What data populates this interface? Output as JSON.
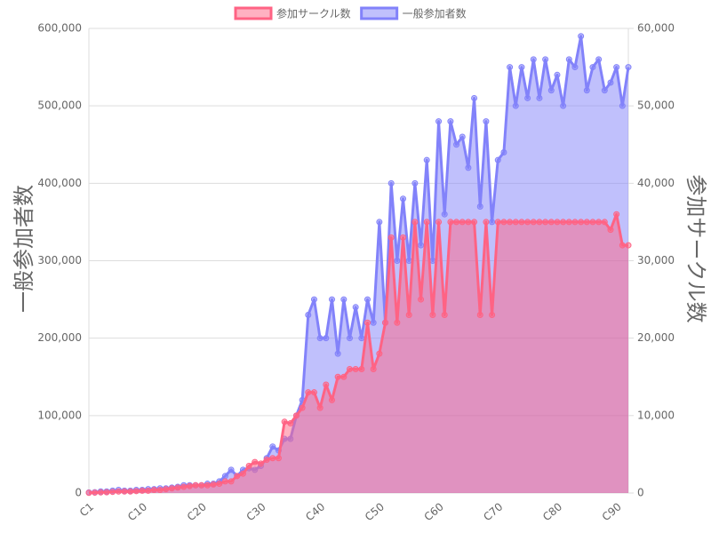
{
  "chart_data": {
    "type": "line",
    "categories": [
      "C1",
      null,
      null,
      null,
      null,
      null,
      null,
      null,
      null,
      "C10",
      null,
      null,
      null,
      null,
      null,
      null,
      null,
      null,
      null,
      "C20",
      null,
      null,
      null,
      null,
      null,
      null,
      null,
      null,
      null,
      "C30",
      null,
      null,
      null,
      null,
      null,
      null,
      null,
      null,
      null,
      "C40",
      null,
      null,
      null,
      null,
      null,
      null,
      null,
      null,
      null,
      "C50",
      null,
      null,
      null,
      null,
      null,
      null,
      null,
      null,
      null,
      "C60",
      null,
      null,
      null,
      null,
      null,
      null,
      null,
      null,
      null,
      "C70",
      null,
      null,
      null,
      null,
      null,
      null,
      null,
      null,
      null,
      "C80",
      null,
      null,
      null,
      null,
      null,
      null,
      null,
      null,
      null,
      "C90",
      null,
      null
    ],
    "series": [
      {
        "name": "参加サークル数",
        "color": "#ff6384",
        "axis": "y2",
        "values": [
          32,
          50,
          80,
          100,
          150,
          200,
          200,
          200,
          250,
          300,
          300,
          400,
          400,
          500,
          600,
          700,
          800,
          900,
          1000,
          1000,
          1000,
          1100,
          1200,
          1500,
          1500,
          2200,
          2500,
          3500,
          4000,
          3800,
          4300,
          4500,
          4500,
          9200,
          9000,
          10000,
          11000,
          13000,
          13000,
          11000,
          14000,
          12000,
          15000,
          15000,
          16000,
          16000,
          16000,
          22000,
          16000,
          18000,
          22000,
          33000,
          22000,
          33000,
          23000,
          35000,
          25000,
          35000,
          23000,
          35000,
          23000,
          35000,
          35000,
          35000,
          35000,
          35000,
          23000,
          35000,
          23000,
          35000,
          35000,
          35000,
          35000,
          35000,
          35000,
          35000,
          35000,
          35000,
          35000,
          35000,
          35000,
          35000,
          35000,
          35000,
          35000,
          35000,
          35000,
          35000,
          34000,
          36000,
          32000,
          32000
        ]
      },
      {
        "name": "一般参加者数",
        "color": "#8282fa",
        "axis": "y",
        "values": [
          700,
          1000,
          2000,
          2000,
          3000,
          4000,
          3000,
          3000,
          4000,
          4000,
          5000,
          5000,
          6000,
          6000,
          7000,
          8000,
          10000,
          10000,
          10000,
          10000,
          12000,
          12000,
          15000,
          22000,
          30000,
          22000,
          30000,
          32000,
          30000,
          35000,
          45000,
          60000,
          55000,
          70000,
          70000,
          100000,
          120000,
          230000,
          250000,
          200000,
          200000,
          250000,
          180000,
          250000,
          200000,
          240000,
          200000,
          250000,
          220000,
          350000,
          220000,
          400000,
          300000,
          380000,
          300000,
          400000,
          320000,
          430000,
          300000,
          480000,
          360000,
          480000,
          450000,
          460000,
          420000,
          510000,
          370000,
          480000,
          350000,
          430000,
          440000,
          550000,
          500000,
          550000,
          510000,
          560000,
          510000,
          560000,
          520000,
          540000,
          500000,
          560000,
          550000,
          590000,
          520000,
          550000,
          560000,
          520000,
          530000,
          550000,
          500000,
          550000
        ]
      }
    ],
    "ylabel": "一般参加者数",
    "y2label": "参加サークル数",
    "ylim": [
      0,
      600000
    ],
    "yticks": [
      0,
      {
        "value": 100000,
        "label": "100,000"
      },
      {
        "value": 200000,
        "label": "200,000"
      },
      {
        "value": 300000,
        "label": "300,000"
      },
      {
        "value": 400000,
        "label": "400,000"
      },
      {
        "value": 500000,
        "label": "500,000"
      },
      {
        "value": 600000,
        "label": "600,000"
      }
    ],
    "y2lim": [
      0,
      60000
    ],
    "y2ticks": [
      0,
      {
        "value": 10000,
        "label": "10,000"
      },
      {
        "value": 20000,
        "label": "20,000"
      },
      {
        "value": 30000,
        "label": "30,000"
      },
      {
        "value": 40000,
        "label": "40,000"
      },
      {
        "value": 50000,
        "label": "50,000"
      },
      {
        "value": 60000,
        "label": "60,000"
      }
    ],
    "grid": true,
    "legend": "top"
  }
}
